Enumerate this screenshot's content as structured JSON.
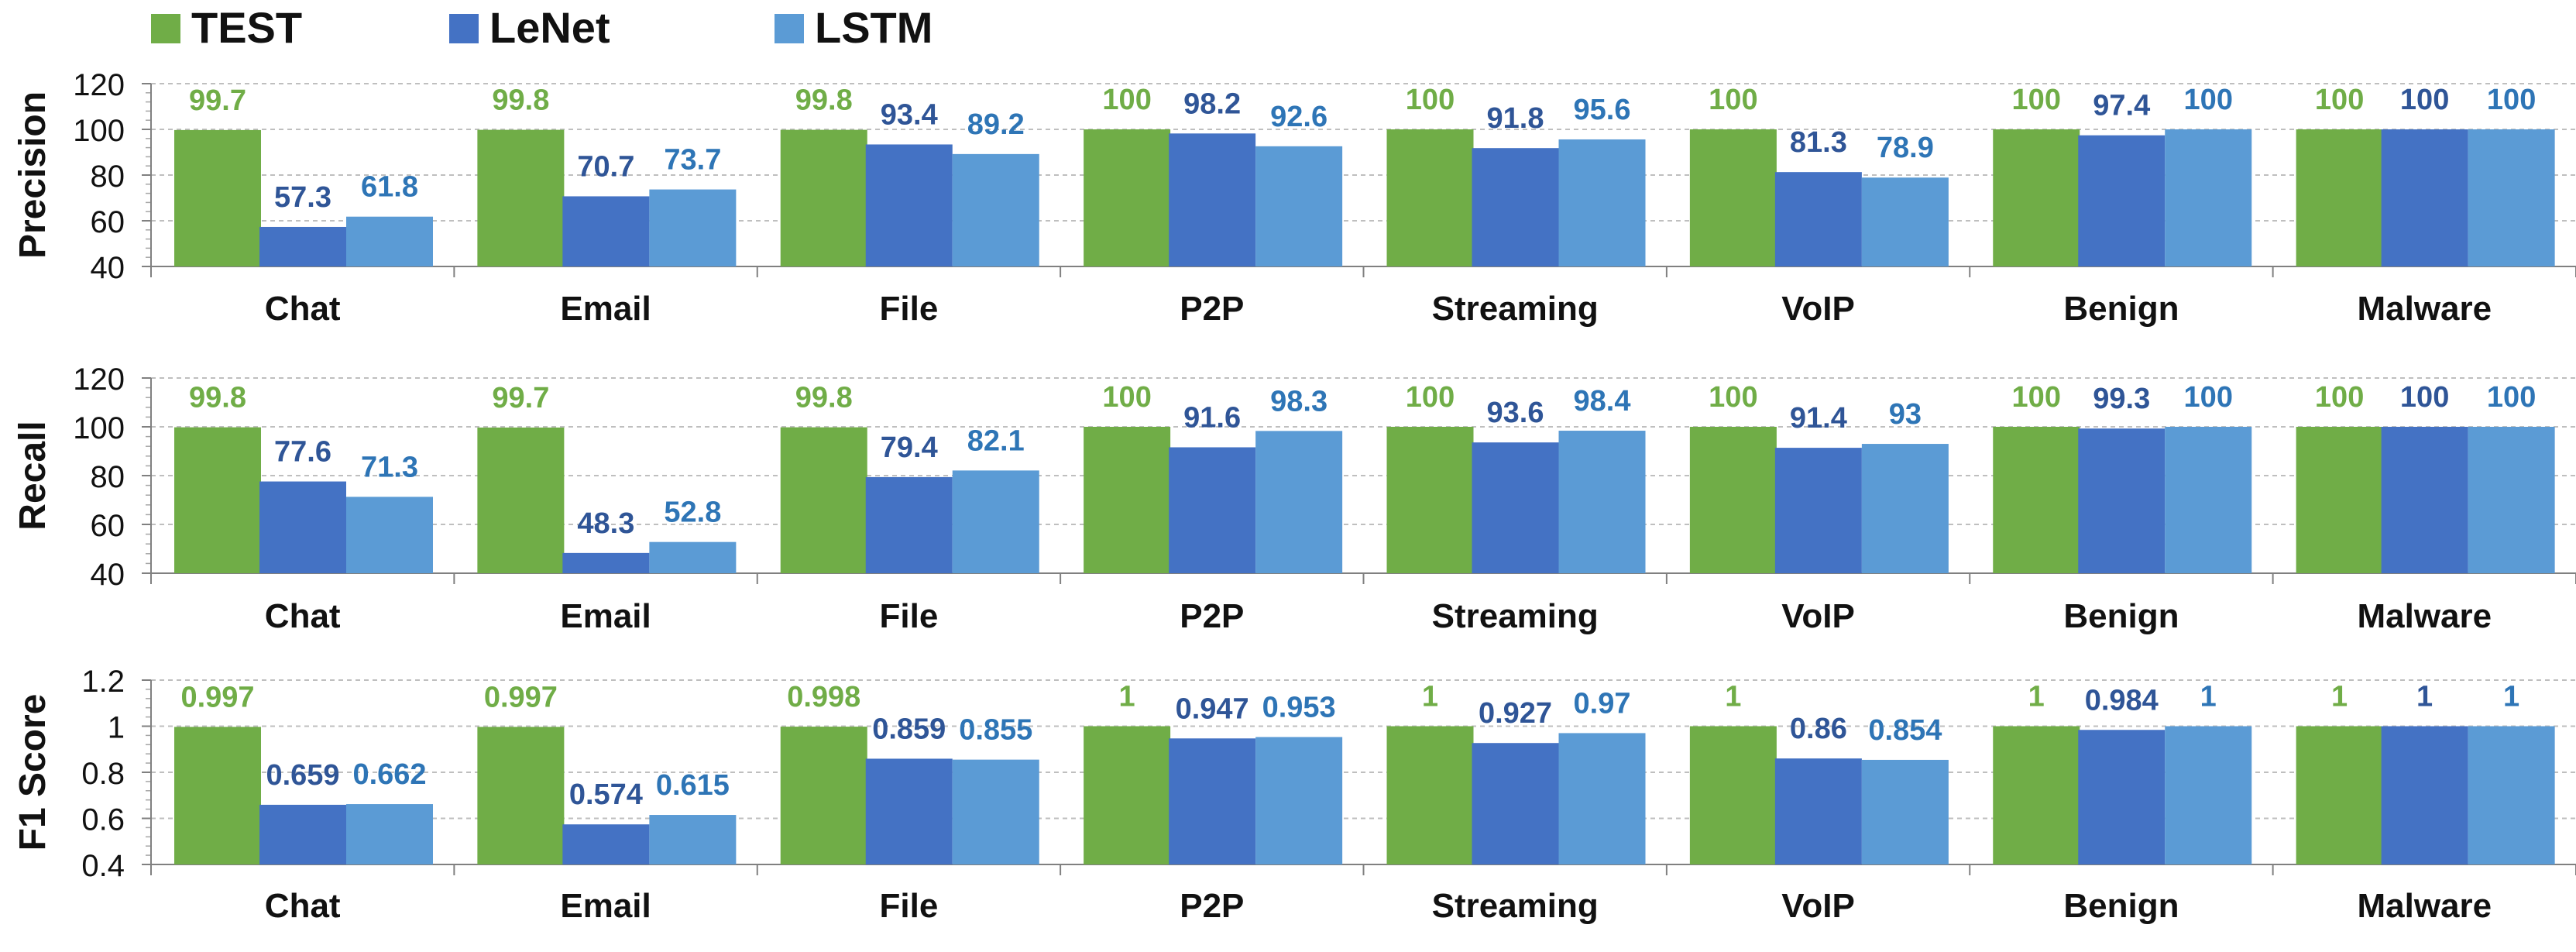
{
  "legend": [
    {
      "name": "TEST",
      "color": "#70AD47"
    },
    {
      "name": "LeNet",
      "color": "#4472C4"
    },
    {
      "name": "LSTM",
      "color": "#5B9BD5"
    }
  ],
  "label_colors": {
    "TEST": "#70AD47",
    "LeNet": "#2F5597",
    "LSTM": "#2E75B6"
  },
  "chart_data": [
    {
      "type": "bar",
      "ylabel": "Precision",
      "ylim": [
        40,
        120
      ],
      "yticks": [
        "40",
        "60",
        "80",
        "100",
        "120"
      ],
      "grid": true,
      "categories": [
        "Chat",
        "Email",
        "File",
        "P2P",
        "Streaming",
        "VoIP",
        "Benign",
        "Malware"
      ],
      "series": [
        {
          "name": "TEST",
          "values": [
            99.7,
            99.8,
            99.8,
            100,
            100,
            100,
            100,
            100
          ],
          "labels": [
            "99.7",
            "99.8",
            "99.8",
            "100",
            "100",
            "100",
            "100",
            "100"
          ]
        },
        {
          "name": "LeNet",
          "values": [
            57.3,
            70.7,
            93.4,
            98.2,
            91.8,
            81.3,
            97.4,
            100
          ],
          "labels": [
            "57.3",
            "70.7",
            "93.4",
            "98.2",
            "91.8",
            "81.3",
            "97.4",
            "100"
          ]
        },
        {
          "name": "LSTM",
          "values": [
            61.8,
            73.7,
            89.2,
            92.6,
            95.6,
            78.9,
            100,
            100
          ],
          "labels": [
            "61.8",
            "73.7",
            "89.2",
            "92.6",
            "95.6",
            "78.9",
            "100",
            "100"
          ]
        }
      ]
    },
    {
      "type": "bar",
      "ylabel": "Recall",
      "ylim": [
        40,
        120
      ],
      "yticks": [
        "40",
        "60",
        "80",
        "100",
        "120"
      ],
      "grid": true,
      "categories": [
        "Chat",
        "Email",
        "File",
        "P2P",
        "Streaming",
        "VoIP",
        "Benign",
        "Malware"
      ],
      "series": [
        {
          "name": "TEST",
          "values": [
            99.8,
            99.7,
            99.8,
            100,
            100,
            100,
            100,
            100
          ],
          "labels": [
            "99.8",
            "99.7",
            "99.8",
            "100",
            "100",
            "100",
            "100",
            "100"
          ]
        },
        {
          "name": "LeNet",
          "values": [
            77.6,
            48.3,
            79.4,
            91.6,
            93.6,
            91.4,
            99.3,
            100
          ],
          "labels": [
            "77.6",
            "48.3",
            "79.4",
            "91.6",
            "93.6",
            "91.4",
            "99.3",
            "100"
          ]
        },
        {
          "name": "LSTM",
          "values": [
            71.3,
            52.8,
            82.1,
            98.3,
            98.4,
            93,
            100,
            100
          ],
          "labels": [
            "71.3",
            "52.8",
            "82.1",
            "98.3",
            "98.4",
            "93",
            "100",
            "100"
          ]
        }
      ]
    },
    {
      "type": "bar",
      "ylabel": "F1 Score",
      "ylim": [
        0.4,
        1.2
      ],
      "yticks": [
        "0.4",
        "0.6",
        "0.8",
        "1",
        "1.2"
      ],
      "grid": true,
      "categories": [
        "Chat",
        "Email",
        "File",
        "P2P",
        "Streaming",
        "VoIP",
        "Benign",
        "Malware"
      ],
      "series": [
        {
          "name": "TEST",
          "values": [
            0.997,
            0.997,
            0.998,
            1,
            1,
            1,
            1,
            1
          ],
          "labels": [
            "0.997",
            "0.997",
            "0.998",
            "1",
            "1",
            "1",
            "1",
            "1"
          ]
        },
        {
          "name": "LeNet",
          "values": [
            0.659,
            0.574,
            0.859,
            0.947,
            0.927,
            0.86,
            0.984,
            1
          ],
          "labels": [
            "0.659",
            "0.574",
            "0.859",
            "0.947",
            "0.927",
            "0.86",
            "0.984",
            "1"
          ]
        },
        {
          "name": "LSTM",
          "values": [
            0.662,
            0.615,
            0.855,
            0.953,
            0.97,
            0.854,
            1,
            1
          ],
          "labels": [
            "0.662",
            "0.615",
            "0.855",
            "0.953",
            "0.97",
            "0.854",
            "1",
            "1"
          ]
        }
      ]
    }
  ]
}
